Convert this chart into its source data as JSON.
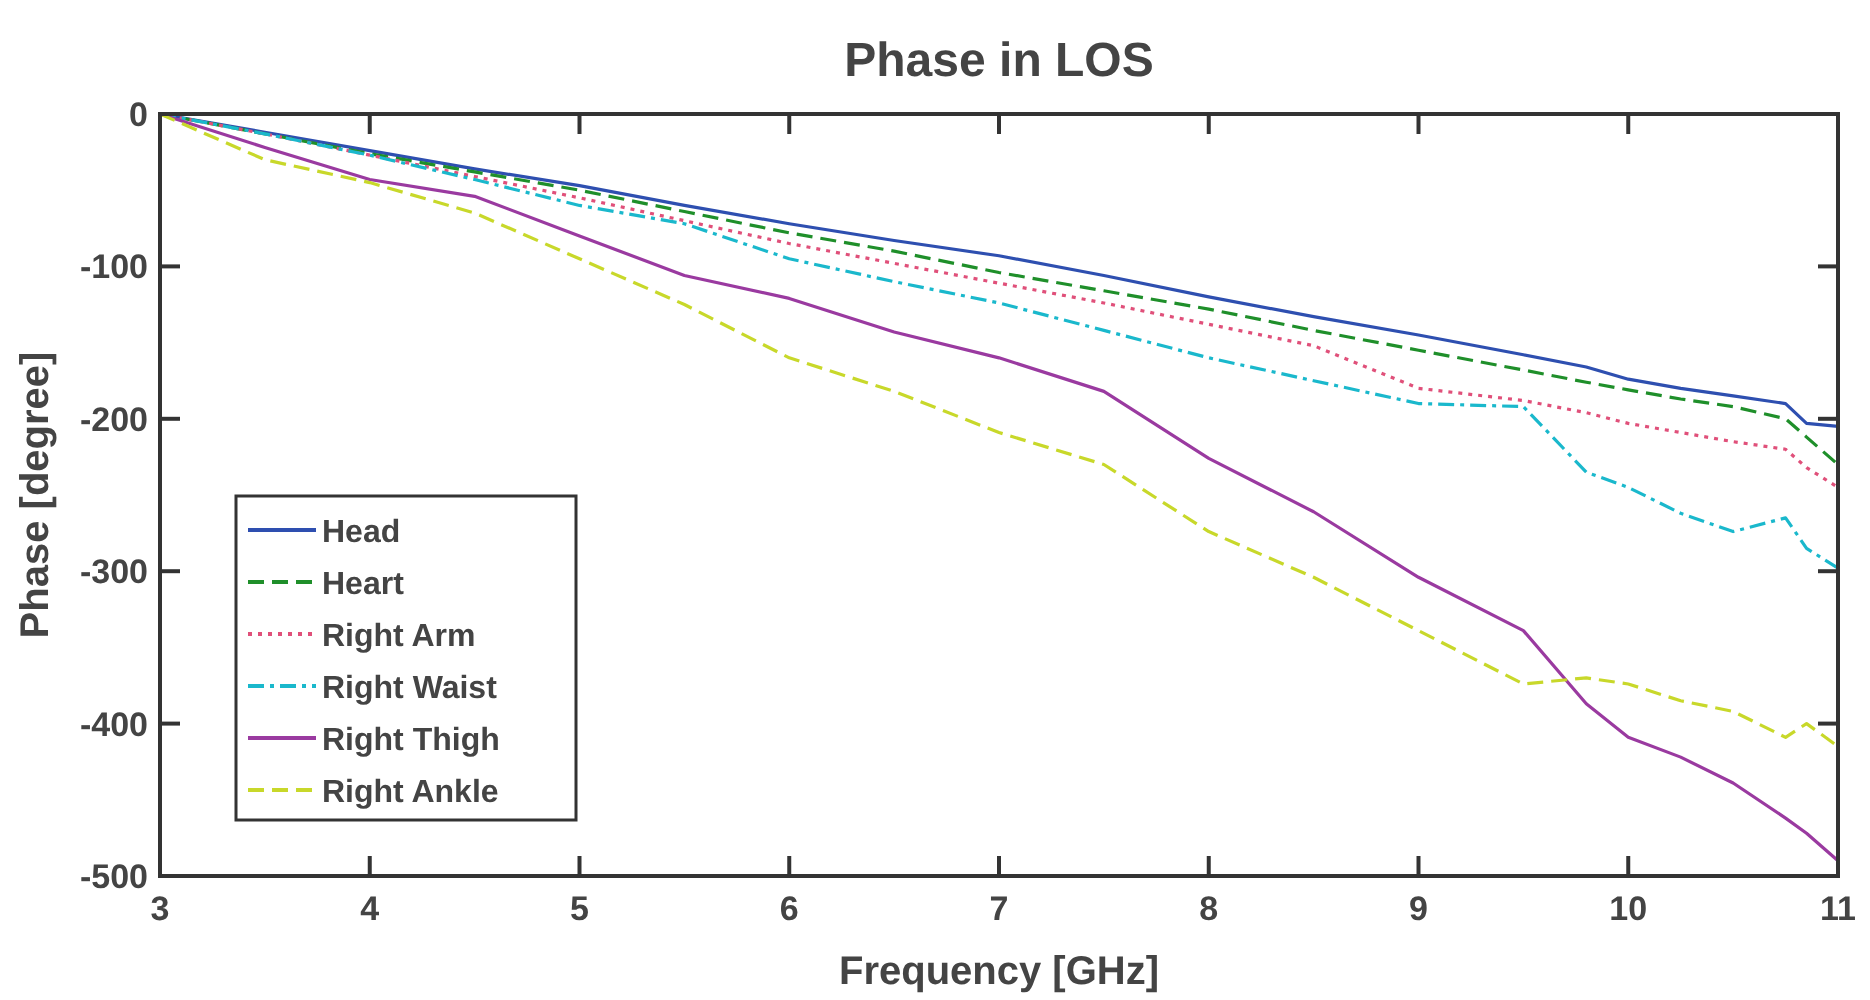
{
  "chart_data": {
    "type": "line",
    "title": "Phase in LOS",
    "xlabel": "Frequency [GHz]",
    "ylabel": "Phase [degree]",
    "xlim": [
      3,
      11
    ],
    "ylim": [
      -500,
      0
    ],
    "xticks": [
      3,
      4,
      5,
      6,
      7,
      8,
      9,
      10,
      11
    ],
    "yticks": [
      -500,
      -400,
      -300,
      -200,
      -100,
      0
    ],
    "grid": false,
    "legend": "bottom left",
    "x": [
      3,
      3.5,
      4,
      4.5,
      5,
      5.5,
      6,
      6.5,
      7,
      7.5,
      8,
      8.5,
      9,
      9.5,
      9.8,
      10,
      10.25,
      10.5,
      10.75,
      10.85,
      11
    ],
    "series": [
      {
        "name": "Head",
        "color": "#2e4fb0",
        "line_style": "solid",
        "values": [
          0,
          -12,
          -24,
          -36,
          -47,
          -60,
          -72,
          -83,
          -93,
          -106,
          -120,
          -133,
          -145,
          -158,
          -166,
          -174,
          -180,
          -185,
          -190,
          -203,
          -205
        ]
      },
      {
        "name": "Heart",
        "color": "#1f8f2a",
        "line_style": "dashed",
        "values": [
          0,
          -13,
          -26,
          -38,
          -50,
          -64,
          -78,
          -90,
          -104,
          -116,
          -128,
          -142,
          -155,
          -168,
          -176,
          -181,
          -187,
          -192,
          -200,
          -212,
          -230
        ]
      },
      {
        "name": "Right Arm",
        "color": "#e0507a",
        "line_style": "dotted",
        "values": [
          0,
          -13,
          -27,
          -41,
          -55,
          -70,
          -85,
          -98,
          -111,
          -124,
          -138,
          -152,
          -180,
          -188,
          -196,
          -203,
          -209,
          -215,
          -220,
          -232,
          -245
        ]
      },
      {
        "name": "Right Waist",
        "color": "#1ab8cc",
        "line_style": "dashdot",
        "values": [
          0,
          -13,
          -27,
          -43,
          -60,
          -72,
          -95,
          -110,
          -124,
          -142,
          -160,
          -175,
          -190,
          -192,
          -235,
          -245,
          -262,
          -274,
          -265,
          -285,
          -298
        ]
      },
      {
        "name": "Right Thigh",
        "color": "#9a3aa0",
        "line_style": "solid",
        "values": [
          0,
          -22,
          -43,
          -54,
          -80,
          -106,
          -121,
          -143,
          -160,
          -182,
          -226,
          -261,
          -304,
          -339,
          -387,
          -409,
          -422,
          -439,
          -462,
          -472,
          -490
        ]
      },
      {
        "name": "Right Ankle",
        "color": "#c8d82a",
        "line_style": "dashed",
        "values": [
          0,
          -30,
          -45,
          -65,
          -95,
          -125,
          -160,
          -182,
          -209,
          -230,
          -274,
          -304,
          -339,
          -374,
          -370,
          -374,
          -385,
          -392,
          -409,
          -400,
          -415
        ]
      }
    ]
  }
}
